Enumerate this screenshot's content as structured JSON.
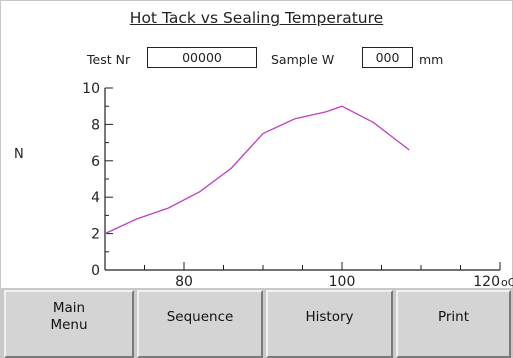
{
  "title": "Hot Tack vs Sealing Temperature",
  "test_nr": {
    "label": "Test Nr",
    "value": "00000"
  },
  "sample_width": {
    "label": "Sample W",
    "value": "000",
    "unit": "mm"
  },
  "buttons": [
    {
      "label": "Main\nMenu"
    },
    {
      "label": "Sequence"
    },
    {
      "label": "History"
    },
    {
      "label": "Print"
    }
  ],
  "colors": {
    "curve": "#c040c0",
    "button_face": "#d4d4d4",
    "background": "#ffffff"
  },
  "chart_data": {
    "type": "line",
    "title": "Hot Tack vs Sealing Temperature",
    "xlabel": "",
    "ylabel": "N",
    "x_unit_label": "oC",
    "xlim": [
      70,
      120
    ],
    "ylim": [
      0,
      10
    ],
    "x_ticks": [
      80,
      100,
      120
    ],
    "y_ticks": [
      0,
      2,
      4,
      6,
      8,
      10
    ],
    "grid": false,
    "series": [
      {
        "x": [
          70,
          74,
          78,
          82,
          86,
          90,
          94,
          98,
          100,
          104,
          108.5
        ],
        "y": [
          2.0,
          2.8,
          3.4,
          4.3,
          5.6,
          7.5,
          8.3,
          8.7,
          9.0,
          8.1,
          6.6
        ]
      }
    ]
  }
}
